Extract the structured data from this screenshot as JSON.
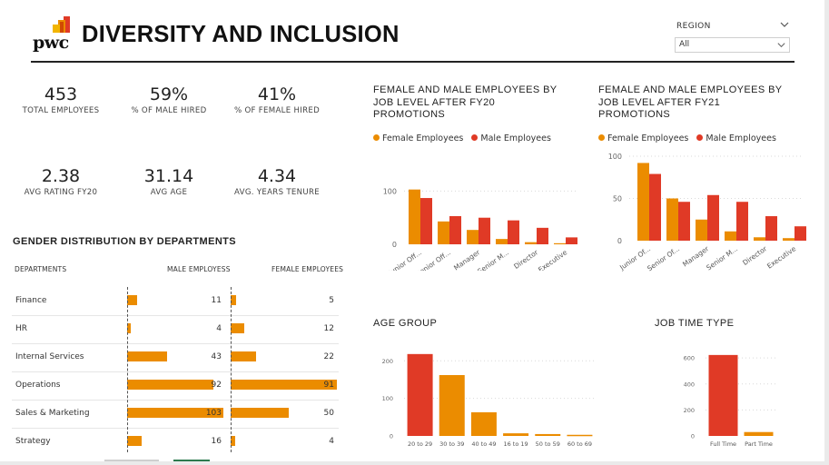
{
  "header": {
    "logo_text": "pwc",
    "title": "DIVERSITY AND INCLUSION"
  },
  "slicer": {
    "label": "REGION",
    "value": "All"
  },
  "kpis": [
    {
      "value": "453",
      "label": "TOTAL EMPLOYEES"
    },
    {
      "value": "59%",
      "label": "% OF MALE HIRED"
    },
    {
      "value": "41%",
      "label": "% OF FEMALE HIRED"
    },
    {
      "value": "2.38",
      "label": "AVG RATING FY20"
    },
    {
      "value": "31.14",
      "label": "AVG AGE"
    },
    {
      "value": "4.34",
      "label": "AVG. YEARS TENURE"
    }
  ],
  "colors": {
    "female": "#eb8c00",
    "male": "#e03a26",
    "accent": "#eb8c00"
  },
  "chart_data": [
    {
      "type": "table",
      "title": "GENDER DISTRIBUTION BY DEPARTMENTS",
      "columns": [
        "DEPARTMENTS",
        "MALE EMPLOYESS",
        "FEMALE EMPLOYEES"
      ],
      "categories": [
        "Finance",
        "HR",
        "Internal Services",
        "Operations",
        "Sales & Marketing",
        "Strategy"
      ],
      "male": [
        11,
        4,
        43,
        92,
        103,
        16
      ],
      "female": [
        5,
        12,
        22,
        91,
        50,
        4
      ],
      "male_max": 103,
      "female_max": 91
    },
    {
      "type": "bar",
      "title": "FEMALE AND MALE EMPLOYEES BY JOB LEVEL AFTER FY20 PROMOTIONS",
      "legend": [
        "Female Employees",
        "Male Employees"
      ],
      "legend_position": "top-left",
      "categories": [
        "Junior Off...",
        "Senior Off...",
        "Manager",
        "Senior M...",
        "Director",
        "Executive"
      ],
      "series": [
        {
          "name": "Female Employees",
          "values": [
            103,
            43,
            27,
            10,
            4,
            2
          ]
        },
        {
          "name": "Male Employees",
          "values": [
            87,
            53,
            50,
            45,
            31,
            13
          ]
        }
      ],
      "yticks": [
        "0",
        "100"
      ],
      "ylim": [
        0,
        140
      ],
      "grid": true
    },
    {
      "type": "bar",
      "title": "FEMALE AND MALE EMPLOYEES BY JOB LEVEL AFTER FY21 PROMOTIONS",
      "legend": [
        "Female Employees",
        "Male Employees"
      ],
      "legend_position": "top-left",
      "categories": [
        "Junior Of...",
        "Senior Of...",
        "Manager",
        "Senior M...",
        "Director",
        "Executive"
      ],
      "series": [
        {
          "name": "Female Employees",
          "values": [
            92,
            50,
            25,
            11,
            4,
            3
          ]
        },
        {
          "name": "Male Employees",
          "values": [
            79,
            46,
            54,
            46,
            29,
            17
          ]
        }
      ],
      "yticks": [
        "0",
        "50",
        "100"
      ],
      "ylim": [
        0,
        100
      ],
      "grid": true
    },
    {
      "type": "bar",
      "title": "AGE GROUP",
      "categories": [
        "20 to 29",
        "30 to 39",
        "40 to 49",
        "16 to 19",
        "50 to 59",
        "60 to 69"
      ],
      "values": [
        218,
        162,
        63,
        7,
        5,
        3
      ],
      "colors": [
        "#e03a26",
        "#eb8c00",
        "#eb8c00",
        "#eb8c00",
        "#eb8c00",
        "#eb8c00"
      ],
      "yticks": [
        "0",
        "100",
        "200"
      ],
      "ylim": [
        0,
        220
      ],
      "grid": true
    },
    {
      "type": "bar",
      "title": "JOB TIME TYPE",
      "categories": [
        "Full Time",
        "Part Time"
      ],
      "values": [
        623,
        30
      ],
      "colors": [
        "#e03a26",
        "#eb8c00"
      ],
      "yticks": [
        "0",
        "200",
        "400",
        "600"
      ],
      "ylim": [
        0,
        650
      ],
      "grid": true
    }
  ]
}
